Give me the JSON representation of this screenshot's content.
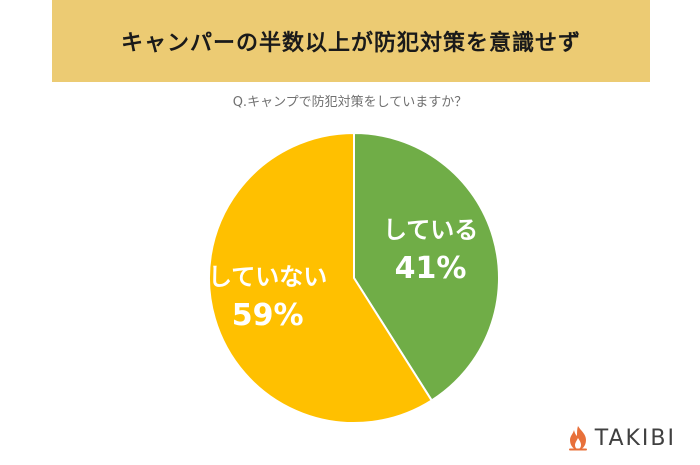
{
  "banner": {
    "title": "キャンパーの半数以上が防犯対策を意識せず",
    "color": "#eccb73"
  },
  "chart_data": {
    "type": "pie",
    "title": "Q.キャンプで防犯対策をしていますか？",
    "slices": [
      {
        "label": "している",
        "value": 41,
        "value_label": "41%",
        "color": "#70ad47"
      },
      {
        "label": "していない",
        "value": 59,
        "value_label": "59%",
        "color": "#ffc000"
      }
    ],
    "start_angle": "12 o'clock",
    "direction": "clockwise",
    "slice_border_color": "#ffffff"
  },
  "brand": {
    "name": "TAKIBI",
    "icon": "flame-icon",
    "icon_color": "#e8703a"
  }
}
